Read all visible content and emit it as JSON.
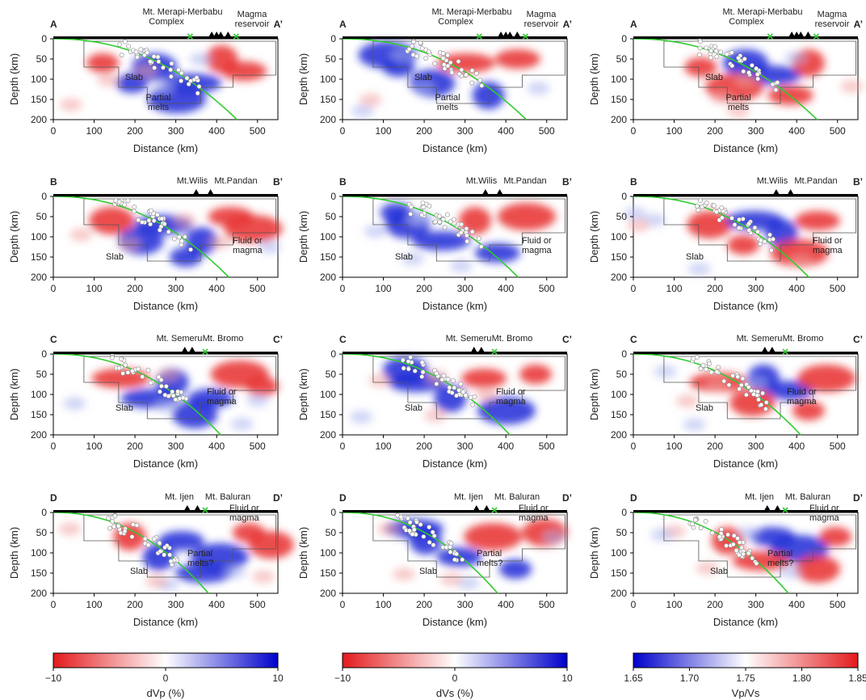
{
  "figure": {
    "x_axis_label": "Distance (km)",
    "y_axis_label": "Depth (km)",
    "x_ticks": [
      0,
      100,
      200,
      300,
      400,
      500
    ],
    "y_ticks": [
      0,
      50,
      100,
      150,
      200
    ],
    "columns": [
      "dVp (%)",
      "dVs (%)",
      "Vp/Vs"
    ]
  },
  "colorbars": [
    {
      "label": "dVp (%)",
      "ticks": [
        "−10",
        "0",
        "10"
      ],
      "colors": [
        "#e41a1c",
        "#ffffff",
        "#0000cc"
      ]
    },
    {
      "label": "dVs (%)",
      "ticks": [
        "−10",
        "0",
        "10"
      ],
      "colors": [
        "#e41a1c",
        "#ffffff",
        "#0000cc"
      ]
    },
    {
      "label": "Vp/Vs",
      "ticks": [
        "1.65",
        "1.70",
        "1.75",
        "1.80",
        "1.85"
      ],
      "colors": [
        "#0000cc",
        "#ffffff",
        "#e41a1c"
      ]
    }
  ],
  "rows": [
    {
      "start_label": "A",
      "end_label": "A’",
      "volcanoes": [
        {
          "name": "Mt. Merapi-Merbabu Complex",
          "km": 388
        },
        {
          "name": "",
          "km": 400
        },
        {
          "name": "",
          "km": 410
        },
        {
          "name": "",
          "km": 428
        }
      ],
      "stars_km": [
        335,
        448
      ],
      "annotations": [
        "Mt. Merapi-Merbabu",
        "Complex",
        "Magma",
        "reservoir",
        "Slab",
        "Partial",
        "melts"
      ]
    },
    {
      "start_label": "B",
      "end_label": "B’",
      "volcanoes": [
        {
          "name": "Mt.Wilis",
          "km": 350
        },
        {
          "name": "Mt.Pandan",
          "km": 385
        }
      ],
      "stars_km": [],
      "annotations": [
        "Mt.Wilis",
        "Mt.Pandan",
        "Slab",
        "Fluid or",
        "magma"
      ]
    },
    {
      "start_label": "C",
      "end_label": "C’",
      "volcanoes": [
        {
          "name": "Mt. Semeru",
          "km": 322
        },
        {
          "name": "Mt. Bromo",
          "km": 340
        }
      ],
      "stars_km": [
        372
      ],
      "annotations": [
        "Mt. Semeru",
        "Mt. Bromo",
        "Slab",
        "Fluid or",
        "magma"
      ]
    },
    {
      "start_label": "D",
      "end_label": "D’",
      "volcanoes": [
        {
          "name": "Mt. Ijen",
          "km": 328
        },
        {
          "name": "Mt. Baluran",
          "km": 353
        }
      ],
      "stars_km": [
        372
      ],
      "annotations": [
        "Mt. Ijen",
        "Mt. Baluran",
        "Slab",
        "Partial",
        "melts?",
        "Fluid or",
        "magma"
      ]
    }
  ],
  "chart_data": [
    {
      "type": "heatmap",
      "title": "A–A’ dVp",
      "xlabel": "Distance (km)",
      "ylabel": "Depth (km)",
      "xlim": [
        0,
        550
      ],
      "ylim": [
        200,
        0
      ],
      "colorbar": "dVp (%)",
      "clim": [
        -10,
        10
      ]
    },
    {
      "type": "heatmap",
      "title": "A–A’ dVs",
      "xlabel": "Distance (km)",
      "ylabel": "Depth (km)",
      "xlim": [
        0,
        550
      ],
      "ylim": [
        200,
        0
      ],
      "colorbar": "dVs (%)",
      "clim": [
        -10,
        10
      ]
    },
    {
      "type": "heatmap",
      "title": "A–A’ Vp/Vs",
      "xlabel": "Distance (km)",
      "ylabel": "Depth (km)",
      "xlim": [
        0,
        550
      ],
      "ylim": [
        200,
        0
      ],
      "colorbar": "Vp/Vs",
      "clim": [
        1.65,
        1.85
      ]
    },
    {
      "type": "heatmap",
      "title": "B–B’ dVp",
      "xlabel": "Distance (km)",
      "ylabel": "Depth (km)",
      "xlim": [
        0,
        550
      ],
      "ylim": [
        200,
        0
      ],
      "colorbar": "dVp (%)",
      "clim": [
        -10,
        10
      ]
    },
    {
      "type": "heatmap",
      "title": "B–B’ dVs",
      "xlabel": "Distance (km)",
      "ylabel": "Depth (km)",
      "xlim": [
        0,
        550
      ],
      "ylim": [
        200,
        0
      ],
      "colorbar": "dVs (%)",
      "clim": [
        -10,
        10
      ]
    },
    {
      "type": "heatmap",
      "title": "B–B’ Vp/Vs",
      "xlabel": "Distance (km)",
      "ylabel": "Depth (km)",
      "xlim": [
        0,
        550
      ],
      "ylim": [
        200,
        0
      ],
      "colorbar": "Vp/Vs",
      "clim": [
        1.65,
        1.85
      ]
    },
    {
      "type": "heatmap",
      "title": "C–C’ dVp",
      "xlabel": "Distance (km)",
      "ylabel": "Depth (km)",
      "xlim": [
        0,
        550
      ],
      "ylim": [
        200,
        0
      ],
      "colorbar": "dVp (%)",
      "clim": [
        -10,
        10
      ]
    },
    {
      "type": "heatmap",
      "title": "C–C’ dVs",
      "xlabel": "Distance (km)",
      "ylabel": "Depth (km)",
      "xlim": [
        0,
        550
      ],
      "ylim": [
        200,
        0
      ],
      "colorbar": "dVs (%)",
      "clim": [
        -10,
        10
      ]
    },
    {
      "type": "heatmap",
      "title": "C–C’ Vp/Vs",
      "xlabel": "Distance (km)",
      "ylabel": "Depth (km)",
      "xlim": [
        0,
        550
      ],
      "ylim": [
        200,
        0
      ],
      "colorbar": "Vp/Vs",
      "clim": [
        1.65,
        1.85
      ]
    },
    {
      "type": "heatmap",
      "title": "D–D’ dVp",
      "xlabel": "Distance (km)",
      "ylabel": "Depth (km)",
      "xlim": [
        0,
        550
      ],
      "ylim": [
        200,
        0
      ],
      "colorbar": "dVp (%)",
      "clim": [
        -10,
        10
      ]
    },
    {
      "type": "heatmap",
      "title": "D–D’ dVs",
      "xlabel": "Distance (km)",
      "ylabel": "Depth (km)",
      "xlim": [
        0,
        550
      ],
      "ylim": [
        200,
        0
      ],
      "colorbar": "dVs (%)",
      "clim": [
        -10,
        10
      ]
    },
    {
      "type": "heatmap",
      "title": "D–D’ Vp/Vs",
      "xlabel": "Distance (km)",
      "ylabel": "Depth (km)",
      "xlim": [
        0,
        550
      ],
      "ylim": [
        200,
        0
      ],
      "colorbar": "Vp/Vs",
      "clim": [
        1.65,
        1.85
      ]
    }
  ]
}
